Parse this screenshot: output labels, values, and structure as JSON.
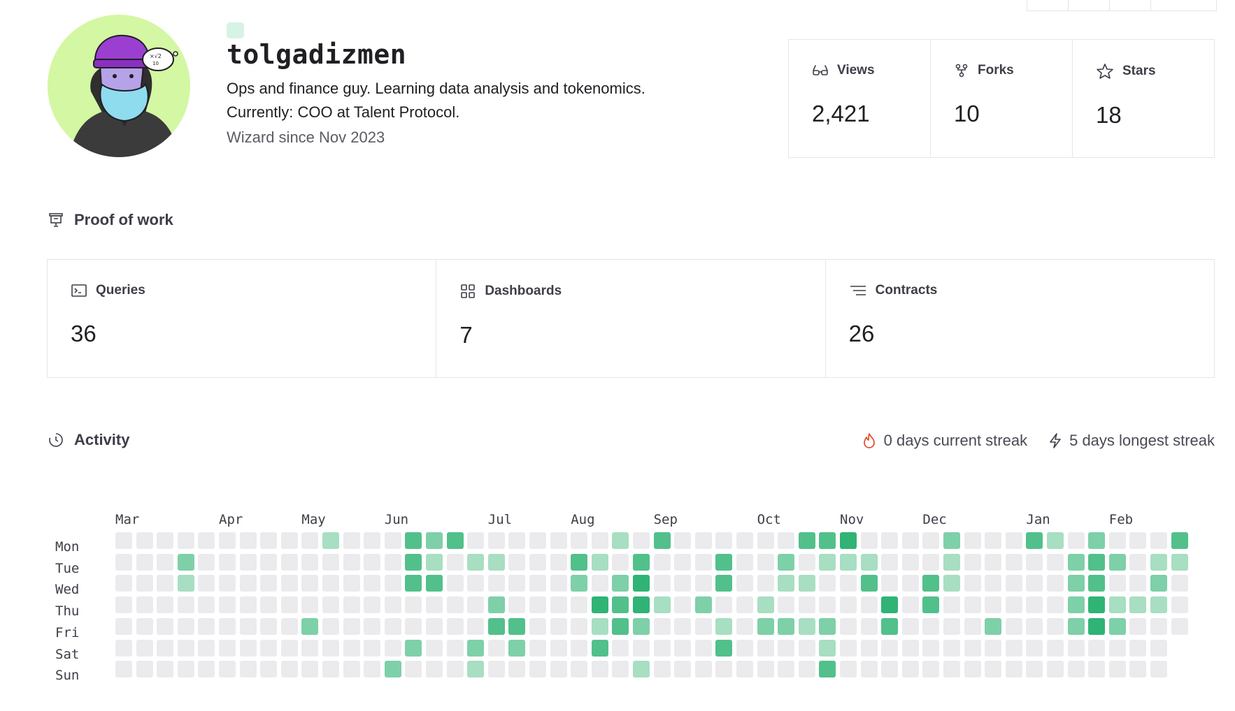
{
  "profile": {
    "username": "tolgadizmen",
    "bio_line1": "Ops and finance guy. Learning data analysis and tokenomics.",
    "bio_line2": "Currently: COO at Talent Protocol.",
    "since": "Wizard since Nov 2023"
  },
  "stats": [
    {
      "label": "Views",
      "value": "2,421",
      "icon": "glasses-icon"
    },
    {
      "label": "Forks",
      "value": "10",
      "icon": "fork-icon"
    },
    {
      "label": "Stars",
      "value": "18",
      "icon": "star-icon"
    }
  ],
  "proof_of_work": {
    "title": "Proof of work",
    "cards": [
      {
        "label": "Queries",
        "value": "36",
        "icon": "terminal-icon"
      },
      {
        "label": "Dashboards",
        "value": "7",
        "icon": "grid-icon"
      },
      {
        "label": "Contracts",
        "value": "26",
        "icon": "lines-icon"
      }
    ]
  },
  "activity": {
    "title": "Activity",
    "current_streak": "0 days current streak",
    "longest_streak": "5 days longest streak",
    "months": [
      "Mar",
      "Apr",
      "May",
      "Jun",
      "Jul",
      "Aug",
      "Sep",
      "Oct",
      "Nov",
      "Dec",
      "Jan",
      "Feb"
    ],
    "days": [
      "Mon",
      "Tue",
      "Wed",
      "Thu",
      "Fri",
      "Sat",
      "Sun"
    ],
    "colors": [
      "#ebebee",
      "#a8dec2",
      "#7ed0a8",
      "#52c08b",
      "#2fb475"
    ],
    "weeks": 52,
    "cells": [
      {
        "w": 10,
        "d": 0,
        "l": 1
      },
      {
        "w": 14,
        "d": 0,
        "l": 3
      },
      {
        "w": 15,
        "d": 0,
        "l": 2
      },
      {
        "w": 16,
        "d": 0,
        "l": 3
      },
      {
        "w": 24,
        "d": 0,
        "l": 1
      },
      {
        "w": 26,
        "d": 0,
        "l": 3
      },
      {
        "w": 33,
        "d": 0,
        "l": 3
      },
      {
        "w": 34,
        "d": 0,
        "l": 3
      },
      {
        "w": 35,
        "d": 0,
        "l": 4
      },
      {
        "w": 40,
        "d": 0,
        "l": 2
      },
      {
        "w": 44,
        "d": 0,
        "l": 3
      },
      {
        "w": 45,
        "d": 0,
        "l": 1
      },
      {
        "w": 47,
        "d": 0,
        "l": 2
      },
      {
        "w": 51,
        "d": 0,
        "l": 3
      },
      {
        "w": 3,
        "d": 1,
        "l": 2
      },
      {
        "w": 14,
        "d": 1,
        "l": 3
      },
      {
        "w": 15,
        "d": 1,
        "l": 1
      },
      {
        "w": 17,
        "d": 1,
        "l": 1
      },
      {
        "w": 18,
        "d": 1,
        "l": 1
      },
      {
        "w": 22,
        "d": 1,
        "l": 3
      },
      {
        "w": 23,
        "d": 1,
        "l": 1
      },
      {
        "w": 25,
        "d": 1,
        "l": 3
      },
      {
        "w": 29,
        "d": 1,
        "l": 3
      },
      {
        "w": 32,
        "d": 1,
        "l": 2
      },
      {
        "w": 34,
        "d": 1,
        "l": 1
      },
      {
        "w": 35,
        "d": 1,
        "l": 1
      },
      {
        "w": 36,
        "d": 1,
        "l": 1
      },
      {
        "w": 40,
        "d": 1,
        "l": 1
      },
      {
        "w": 46,
        "d": 1,
        "l": 2
      },
      {
        "w": 47,
        "d": 1,
        "l": 3
      },
      {
        "w": 48,
        "d": 1,
        "l": 2
      },
      {
        "w": 50,
        "d": 1,
        "l": 1
      },
      {
        "w": 51,
        "d": 1,
        "l": 1
      },
      {
        "w": 3,
        "d": 2,
        "l": 1
      },
      {
        "w": 14,
        "d": 2,
        "l": 3
      },
      {
        "w": 15,
        "d": 2,
        "l": 3
      },
      {
        "w": 22,
        "d": 2,
        "l": 2
      },
      {
        "w": 24,
        "d": 2,
        "l": 2
      },
      {
        "w": 25,
        "d": 2,
        "l": 4
      },
      {
        "w": 29,
        "d": 2,
        "l": 3
      },
      {
        "w": 32,
        "d": 2,
        "l": 1
      },
      {
        "w": 33,
        "d": 2,
        "l": 1
      },
      {
        "w": 36,
        "d": 2,
        "l": 3
      },
      {
        "w": 39,
        "d": 2,
        "l": 3
      },
      {
        "w": 40,
        "d": 2,
        "l": 1
      },
      {
        "w": 46,
        "d": 2,
        "l": 2
      },
      {
        "w": 47,
        "d": 2,
        "l": 3
      },
      {
        "w": 50,
        "d": 2,
        "l": 2
      },
      {
        "w": 18,
        "d": 3,
        "l": 2
      },
      {
        "w": 23,
        "d": 3,
        "l": 4
      },
      {
        "w": 24,
        "d": 3,
        "l": 3
      },
      {
        "w": 25,
        "d": 3,
        "l": 4
      },
      {
        "w": 26,
        "d": 3,
        "l": 1
      },
      {
        "w": 28,
        "d": 3,
        "l": 2
      },
      {
        "w": 31,
        "d": 3,
        "l": 1
      },
      {
        "w": 37,
        "d": 3,
        "l": 4
      },
      {
        "w": 39,
        "d": 3,
        "l": 3
      },
      {
        "w": 46,
        "d": 3,
        "l": 2
      },
      {
        "w": 47,
        "d": 3,
        "l": 4
      },
      {
        "w": 48,
        "d": 3,
        "l": 1
      },
      {
        "w": 49,
        "d": 3,
        "l": 1
      },
      {
        "w": 50,
        "d": 3,
        "l": 1
      },
      {
        "w": 9,
        "d": 4,
        "l": 2
      },
      {
        "w": 18,
        "d": 4,
        "l": 3
      },
      {
        "w": 19,
        "d": 4,
        "l": 3
      },
      {
        "w": 23,
        "d": 4,
        "l": 1
      },
      {
        "w": 24,
        "d": 4,
        "l": 3
      },
      {
        "w": 25,
        "d": 4,
        "l": 2
      },
      {
        "w": 29,
        "d": 4,
        "l": 1
      },
      {
        "w": 31,
        "d": 4,
        "l": 2
      },
      {
        "w": 32,
        "d": 4,
        "l": 2
      },
      {
        "w": 33,
        "d": 4,
        "l": 1
      },
      {
        "w": 34,
        "d": 4,
        "l": 2
      },
      {
        "w": 37,
        "d": 4,
        "l": 3
      },
      {
        "w": 42,
        "d": 4,
        "l": 2
      },
      {
        "w": 46,
        "d": 4,
        "l": 2
      },
      {
        "w": 47,
        "d": 4,
        "l": 4
      },
      {
        "w": 48,
        "d": 4,
        "l": 2
      },
      {
        "w": 14,
        "d": 5,
        "l": 2
      },
      {
        "w": 17,
        "d": 5,
        "l": 2
      },
      {
        "w": 19,
        "d": 5,
        "l": 2
      },
      {
        "w": 23,
        "d": 5,
        "l": 3
      },
      {
        "w": 29,
        "d": 5,
        "l": 3
      },
      {
        "w": 34,
        "d": 5,
        "l": 1
      },
      {
        "w": 13,
        "d": 6,
        "l": 2
      },
      {
        "w": 17,
        "d": 6,
        "l": 1
      },
      {
        "w": 25,
        "d": 6,
        "l": 1
      },
      {
        "w": 34,
        "d": 6,
        "l": 3
      }
    ],
    "lastWeekDays": 5
  }
}
